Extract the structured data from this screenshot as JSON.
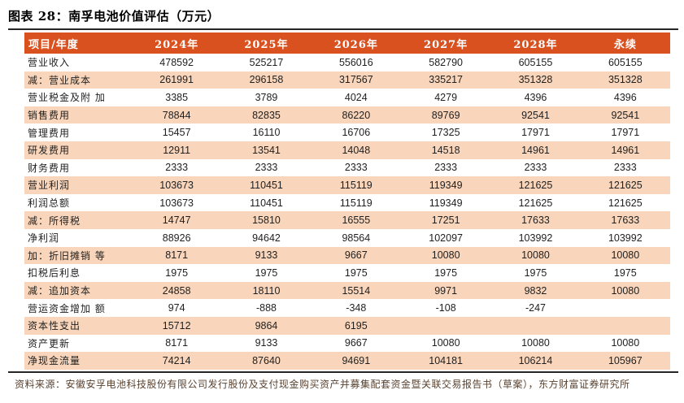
{
  "title": "图表 28：南孚电池价值评估（万元）",
  "table": {
    "columns": [
      "项目/年度",
      "2024年",
      "2025年",
      "2026年",
      "2027年",
      "2028年",
      "永续"
    ],
    "rows": [
      {
        "label": "营业收入",
        "values": [
          "478592",
          "525217",
          "556016",
          "582790",
          "605155",
          "605155"
        ]
      },
      {
        "label": "减：营业成本",
        "values": [
          "261991",
          "296158",
          "317567",
          "335217",
          "351328",
          "351328"
        ]
      },
      {
        "label": "营业税金及附 加",
        "values": [
          "3385",
          "3789",
          "4024",
          "4279",
          "4396",
          "4396"
        ]
      },
      {
        "label": "销售费用",
        "values": [
          "78844",
          "82835",
          "86220",
          "89769",
          "92541",
          "92541"
        ]
      },
      {
        "label": "管理费用",
        "values": [
          "15457",
          "16110",
          "16706",
          "17325",
          "17971",
          "17971"
        ]
      },
      {
        "label": "研发费用",
        "values": [
          "12911",
          "13541",
          "14048",
          "14518",
          "14961",
          "14961"
        ]
      },
      {
        "label": "财务费用",
        "values": [
          "2333",
          "2333",
          "2333",
          "2333",
          "2333",
          "2333"
        ]
      },
      {
        "label": "营业利润",
        "values": [
          "103673",
          "110451",
          "115119",
          "119349",
          "121625",
          "121625"
        ]
      },
      {
        "label": "利润总额",
        "values": [
          "103673",
          "110451",
          "115119",
          "119349",
          "121625",
          "121625"
        ]
      },
      {
        "label": "减：所得税",
        "values": [
          "14747",
          "15810",
          "16555",
          "17251",
          "17633",
          "17633"
        ]
      },
      {
        "label": "净利润",
        "values": [
          "88926",
          "94642",
          "98564",
          "102097",
          "103992",
          "103992"
        ]
      },
      {
        "label": "加：折旧摊销 等",
        "values": [
          "8171",
          "9133",
          "9667",
          "10080",
          "10080",
          "10080"
        ]
      },
      {
        "label": "扣税后利息",
        "values": [
          "1975",
          "1975",
          "1975",
          "1975",
          "1975",
          "1975"
        ]
      },
      {
        "label": "减：追加资本",
        "values": [
          "24858",
          "18110",
          "15514",
          "9971",
          "9832",
          "10080"
        ]
      },
      {
        "label": "营运资金增加 额",
        "values": [
          "974",
          "-888",
          "-348",
          "-108",
          "-247",
          ""
        ]
      },
      {
        "label": "资本性支出",
        "values": [
          "15712",
          "9864",
          "6195",
          "",
          "",
          ""
        ]
      },
      {
        "label": "资产更新",
        "values": [
          "8171",
          "9133",
          "9667",
          "10080",
          "10080",
          "10080"
        ]
      },
      {
        "label": "净现金流量",
        "values": [
          "74214",
          "87640",
          "94691",
          "104181",
          "106214",
          "105967"
        ]
      }
    ]
  },
  "source": "资料来源：安徽安孚电池科技股份有限公司发行股份及支付现金购买资产并募集配套资金暨关联交易报告书（草案），东方财富证券研究所",
  "colors": {
    "header_bg": "#D9511F",
    "row_alt_bg": "#F9D6BB",
    "header_text": "#FFFFFF",
    "body_text": "#1F1F1F",
    "source_text": "#5A4330",
    "rule": "#262626"
  }
}
